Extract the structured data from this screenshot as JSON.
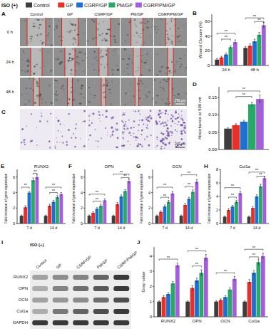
{
  "header": {
    "label": "ISO (+)"
  },
  "images": [
    {
      "label": "A",
      "columns": [
        "Control",
        "GP",
        "CGRP/GP",
        "PM/GP",
        "CGRP/PM/GP"
      ],
      "rows": [
        "0 h",
        "24 h",
        "48 h"
      ],
      "scale_bar": "200 μm"
    },
    {
      "label": "C",
      "scale_bar": "200 μm"
    },
    {
      "label": "I",
      "header": "ISO (+)",
      "columns": [
        "Control",
        "GP",
        "CGRP/GP",
        "PM/GP",
        "CGRP/PM/GP"
      ],
      "rows": [
        "RUNX2",
        "OPN",
        "OCN",
        "Col1a",
        "GAPDH"
      ]
    }
  ],
  "chart_data": [
    {
      "type": "bar",
      "label": "B",
      "y_label": "Wound Closure (%)",
      "categories": [
        "24 h",
        "48 h"
      ],
      "ylim": [
        0,
        70
      ],
      "yticks": [
        0,
        20,
        40,
        60
      ],
      "grid": false,
      "series": [
        {
          "name": "Control",
          "color": "#3d3d3d",
          "values": [
            8,
            24
          ],
          "errors": [
            1.5,
            2
          ]
        },
        {
          "name": "GP",
          "color": "#e8302a",
          "values": [
            11,
            27
          ],
          "errors": [
            1.5,
            2.5
          ]
        },
        {
          "name": "CGRP/GP",
          "color": "#1f6fd1",
          "values": [
            15,
            33
          ],
          "errors": [
            2,
            3
          ]
        },
        {
          "name": "PM/GP",
          "color": "#2aa86a",
          "values": [
            25,
            42
          ],
          "errors": [
            2,
            3
          ]
        },
        {
          "name": "CGRP/PM/GP",
          "color": "#a35fd6",
          "values": [
            32,
            55
          ],
          "errors": [
            3,
            4
          ]
        }
      ],
      "annotations": [
        {
          "text": "**",
          "category": 0,
          "from": 0,
          "to": 4,
          "y": 44
        },
        {
          "text": "**",
          "category": 0,
          "from": 1,
          "to": 3,
          "y": 36
        },
        {
          "text": "**",
          "category": 1,
          "from": 0,
          "to": 4,
          "y": 65
        },
        {
          "text": "**",
          "category": 1,
          "from": 2,
          "to": 4,
          "y": 60
        }
      ]
    },
    {
      "type": "bar",
      "label": "D",
      "y_label": "Absorbance at 590 nm",
      "categories": [
        null
      ],
      "ylim": [
        0,
        0.18
      ],
      "yticks": [
        {
          "value": 0,
          "label": "0.00"
        },
        {
          "value": 0.05,
          "label": "0.05"
        },
        {
          "value": 0.1,
          "label": "0.10"
        },
        {
          "value": 0.15,
          "label": "0.15"
        }
      ],
      "grid": false,
      "series": [
        {
          "name": "Control",
          "color": "#3d3d3d",
          "values": [
            0.06
          ],
          "errors": [
            0.003
          ]
        },
        {
          "name": "GP",
          "color": "#e8302a",
          "values": [
            0.07
          ],
          "errors": [
            0.004
          ]
        },
        {
          "name": "CGRP/GP",
          "color": "#1f6fd1",
          "values": [
            0.08
          ],
          "errors": [
            0.004
          ]
        },
        {
          "name": "PM/GP",
          "color": "#2aa86a",
          "values": [
            0.13
          ],
          "errors": [
            0.006
          ]
        },
        {
          "name": "CGRP/PM/GP",
          "color": "#a35fd6",
          "values": [
            0.145
          ],
          "errors": [
            0.012
          ]
        }
      ],
      "annotations": [
        {
          "text": "**",
          "category": 0,
          "from": 1,
          "to": 3,
          "y": 0.152
        },
        {
          "text": "**",
          "category": 0,
          "from": 0,
          "to": 4,
          "y": 0.168
        }
      ]
    },
    {
      "type": "bar",
      "label": "E",
      "title": "RUNX2",
      "y_label": "Fold increase of gene expression",
      "categories": [
        "7 d",
        "14 d"
      ],
      "ylim": [
        0,
        7
      ],
      "yticks": [
        0,
        2,
        4,
        6
      ],
      "grid": false,
      "series": [
        {
          "name": "Control",
          "color": "#3d3d3d",
          "values": [
            1,
            1
          ],
          "errors": [
            0.1,
            0.1
          ]
        },
        {
          "name": "GP",
          "color": "#e8302a",
          "values": [
            2.1,
            2.3
          ],
          "errors": [
            0.2,
            0.2
          ]
        },
        {
          "name": "CGRP/GP",
          "color": "#1f6fd1",
          "values": [
            4,
            2.8
          ],
          "errors": [
            0.2,
            0.2
          ]
        },
        {
          "name": "PM/GP",
          "color": "#2aa86a",
          "values": [
            5.6,
            3.4
          ],
          "errors": [
            0.3,
            0.2
          ]
        },
        {
          "name": "CGRP/PM/GP",
          "color": "#a35fd6",
          "values": [
            6,
            3.8
          ],
          "errors": [
            0.3,
            0.2
          ]
        }
      ],
      "annotations": [
        {
          "text": "**",
          "category": 0,
          "from": 0,
          "to": 2,
          "y": 4.7
        },
        {
          "text": "**",
          "category": 0,
          "from": 3,
          "to": 4,
          "y": 6.5
        },
        {
          "text": "**",
          "category": 1,
          "from": 0,
          "to": 4,
          "y": 4.7
        },
        {
          "text": "**",
          "category": 1,
          "from": 1,
          "to": 3,
          "y": 4.0
        }
      ]
    },
    {
      "type": "bar",
      "label": "F",
      "title": "OPN",
      "y_label": "Fold increase of gene expression",
      "categories": [
        "7 d",
        "14 d"
      ],
      "ylim": [
        0,
        7
      ],
      "yticks": [
        0,
        2,
        4,
        6
      ],
      "grid": false,
      "series": [
        {
          "name": "Control",
          "color": "#3d3d3d",
          "values": [
            1,
            1
          ],
          "errors": [
            0.1,
            0.1
          ]
        },
        {
          "name": "GP",
          "color": "#e8302a",
          "values": [
            1.4,
            2.5
          ],
          "errors": [
            0.15,
            0.2
          ]
        },
        {
          "name": "CGRP/GP",
          "color": "#1f6fd1",
          "values": [
            1.9,
            3.5
          ],
          "errors": [
            0.15,
            0.2
          ]
        },
        {
          "name": "PM/GP",
          "color": "#2aa86a",
          "values": [
            2.3,
            4.2
          ],
          "errors": [
            0.2,
            0.2
          ]
        },
        {
          "name": "CGRP/PM/GP",
          "color": "#a35fd6",
          "values": [
            3,
            5.5
          ],
          "errors": [
            0.2,
            0.3
          ]
        }
      ],
      "annotations": [
        {
          "text": "**",
          "category": 0,
          "from": 0,
          "to": 4,
          "y": 3.8
        },
        {
          "text": "**",
          "category": 0,
          "from": 1,
          "to": 3,
          "y": 2.9
        },
        {
          "text": "**",
          "category": 1,
          "from": 0,
          "to": 4,
          "y": 6.4
        },
        {
          "text": "**",
          "category": 1,
          "from": 2,
          "to": 4,
          "y": 5.95
        }
      ]
    },
    {
      "type": "bar",
      "label": "G",
      "title": "OCN",
      "y_label": "Fold increase of gene expression",
      "categories": [
        "7 d",
        "14 d"
      ],
      "ylim": [
        0,
        7
      ],
      "yticks": [
        0,
        2,
        4,
        6
      ],
      "grid": false,
      "series": [
        {
          "name": "Control",
          "color": "#3d3d3d",
          "values": [
            1,
            1
          ],
          "errors": [
            0.1,
            0.1
          ]
        },
        {
          "name": "GP",
          "color": "#e8302a",
          "values": [
            1.5,
            2.4
          ],
          "errors": [
            0.15,
            0.2
          ]
        },
        {
          "name": "CGRP/GP",
          "color": "#1f6fd1",
          "values": [
            2.2,
            3.2
          ],
          "errors": [
            0.2,
            0.2
          ]
        },
        {
          "name": "PM/GP",
          "color": "#2aa86a",
          "values": [
            2.8,
            4.1
          ],
          "errors": [
            0.2,
            0.25
          ]
        },
        {
          "name": "CGRP/PM/GP",
          "color": "#a35fd6",
          "values": [
            3.9,
            5.4
          ],
          "errors": [
            0.25,
            0.3
          ]
        }
      ],
      "annotations": [
        {
          "text": "**",
          "category": 0,
          "from": 0,
          "to": 4,
          "y": 4.7
        },
        {
          "text": "**",
          "category": 0,
          "from": 1,
          "to": 3,
          "y": 3.4
        },
        {
          "text": "**",
          "category": 1,
          "from": 0,
          "to": 4,
          "y": 6.3
        },
        {
          "text": "**",
          "category": 1,
          "from": 1,
          "to": 3,
          "y": 4.8
        }
      ]
    },
    {
      "type": "bar",
      "label": "H",
      "title": "Col1a",
      "y_label": "Fold increase of gene expression",
      "categories": [
        "7 d",
        "14 d"
      ],
      "ylim": [
        0,
        8
      ],
      "yticks": [
        0,
        2,
        4,
        6,
        8
      ],
      "grid": false,
      "series": [
        {
          "name": "Control",
          "color": "#3d3d3d",
          "values": [
            1,
            1
          ],
          "errors": [
            0.1,
            0.1
          ]
        },
        {
          "name": "GP",
          "color": "#e8302a",
          "values": [
            2,
            2.3
          ],
          "errors": [
            0.2,
            0.2
          ]
        },
        {
          "name": "CGRP/GP",
          "color": "#1f6fd1",
          "values": [
            2.5,
            4
          ],
          "errors": [
            0.2,
            0.25
          ]
        },
        {
          "name": "PM/GP",
          "color": "#2aa86a",
          "values": [
            3.2,
            5.5
          ],
          "errors": [
            0.25,
            0.3
          ]
        },
        {
          "name": "CGRP/PM/GP",
          "color": "#a35fd6",
          "values": [
            4.5,
            6.7
          ],
          "errors": [
            0.3,
            0.3
          ]
        }
      ],
      "annotations": [
        {
          "text": "**",
          "category": 0,
          "from": 0,
          "to": 4,
          "y": 5.3
        },
        {
          "text": "**",
          "category": 0,
          "from": 1,
          "to": 3,
          "y": 3.9
        },
        {
          "text": "**",
          "category": 1,
          "from": 0,
          "to": 4,
          "y": 7.6
        },
        {
          "text": "**",
          "category": 1,
          "from": 2,
          "to": 4,
          "y": 7.0
        }
      ]
    },
    {
      "type": "bar",
      "label": "J",
      "y_label": "Gray value",
      "categories": [
        "RUNX2",
        "OPN",
        "OCN",
        "Col1a"
      ],
      "ylim": [
        0,
        4.6
      ],
      "yticks": [
        0,
        1,
        2,
        3,
        4
      ],
      "grid": false,
      "series": [
        {
          "name": "Control",
          "color": "#3d3d3d",
          "values": [
            1,
            1,
            1,
            1
          ],
          "errors": [
            0.05,
            0.05,
            0.05,
            0.05
          ]
        },
        {
          "name": "GP",
          "color": "#e8302a",
          "values": [
            1.3,
            1.9,
            1.1,
            2.3
          ],
          "errors": [
            0.1,
            0.15,
            0.08,
            0.15
          ]
        },
        {
          "name": "CGRP/GP",
          "color": "#1f6fd1",
          "values": [
            1.5,
            2.4,
            1.3,
            2.9
          ],
          "errors": [
            0.1,
            0.15,
            0.1,
            0.15
          ]
        },
        {
          "name": "PM/GP",
          "color": "#2aa86a",
          "values": [
            2.2,
            2.9,
            1.8,
            3.6
          ],
          "errors": [
            0.12,
            0.2,
            0.12,
            0.2
          ]
        },
        {
          "name": "CGRP/PM/GP",
          "color": "#a35fd6",
          "values": [
            3.4,
            3.9,
            2.5,
            4
          ],
          "errors": [
            0.15,
            0.2,
            0.15,
            0.2
          ]
        }
      ],
      "annotations": [
        {
          "text": "**",
          "category": 0,
          "from": 0,
          "to": 4,
          "y": 3.8
        },
        {
          "text": "**",
          "category": 1,
          "from": 0,
          "to": 4,
          "y": 4.35
        },
        {
          "text": "**",
          "category": 1,
          "from": 1,
          "to": 3,
          "y": 3.35
        },
        {
          "text": "**",
          "category": 2,
          "from": 0,
          "to": 4,
          "y": 2.9
        },
        {
          "text": "**",
          "category": 3,
          "from": 0,
          "to": 4,
          "y": 4.45
        },
        {
          "text": "**",
          "category": 3,
          "from": 1,
          "to": 3,
          "y": 3.95
        }
      ]
    }
  ]
}
